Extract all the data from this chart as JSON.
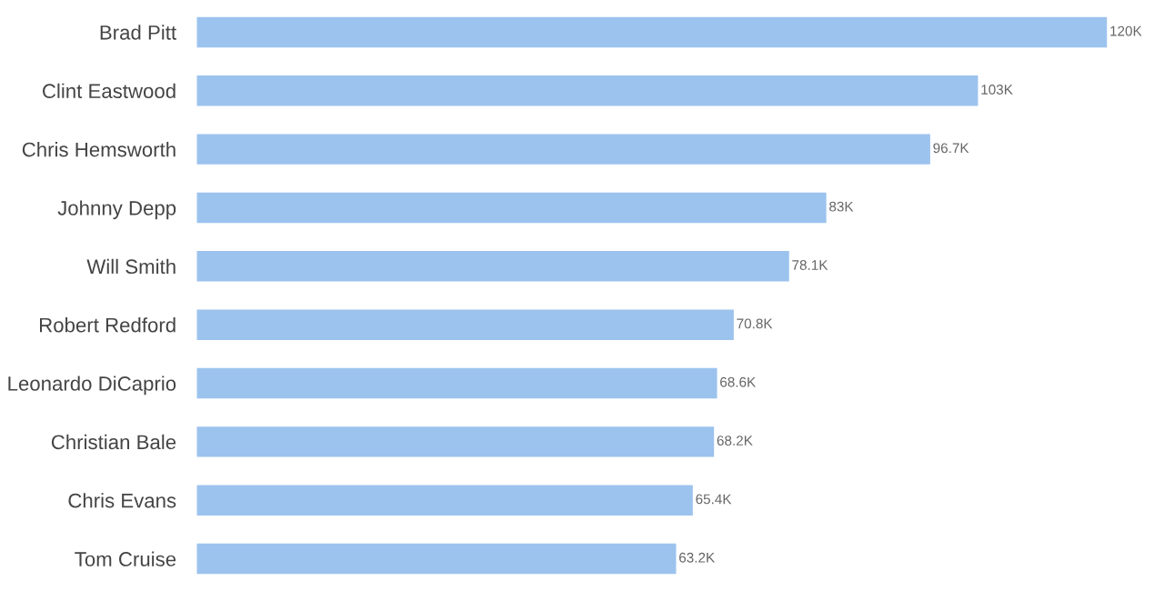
{
  "chart_data": {
    "type": "bar",
    "orientation": "horizontal",
    "categories": [
      "Brad Pitt",
      "Clint Eastwood",
      "Chris Hemsworth",
      "Johnny Depp",
      "Will Smith",
      "Robert Redford",
      "Leonardo DiCaprio",
      "Christian Bale",
      "Chris Evans",
      "Tom Cruise"
    ],
    "values": [
      120,
      103,
      96.7,
      83,
      78.1,
      70.8,
      68.6,
      68.2,
      65.4,
      63.2
    ],
    "value_labels": [
      "120K",
      "103K",
      "96.7K",
      "83K",
      "78.1K",
      "70.8K",
      "68.6K",
      "68.2K",
      "65.4K",
      "63.2K"
    ],
    "color": "#9cc3ee",
    "tick_labels": "y",
    "grid": false,
    "legend": false
  }
}
